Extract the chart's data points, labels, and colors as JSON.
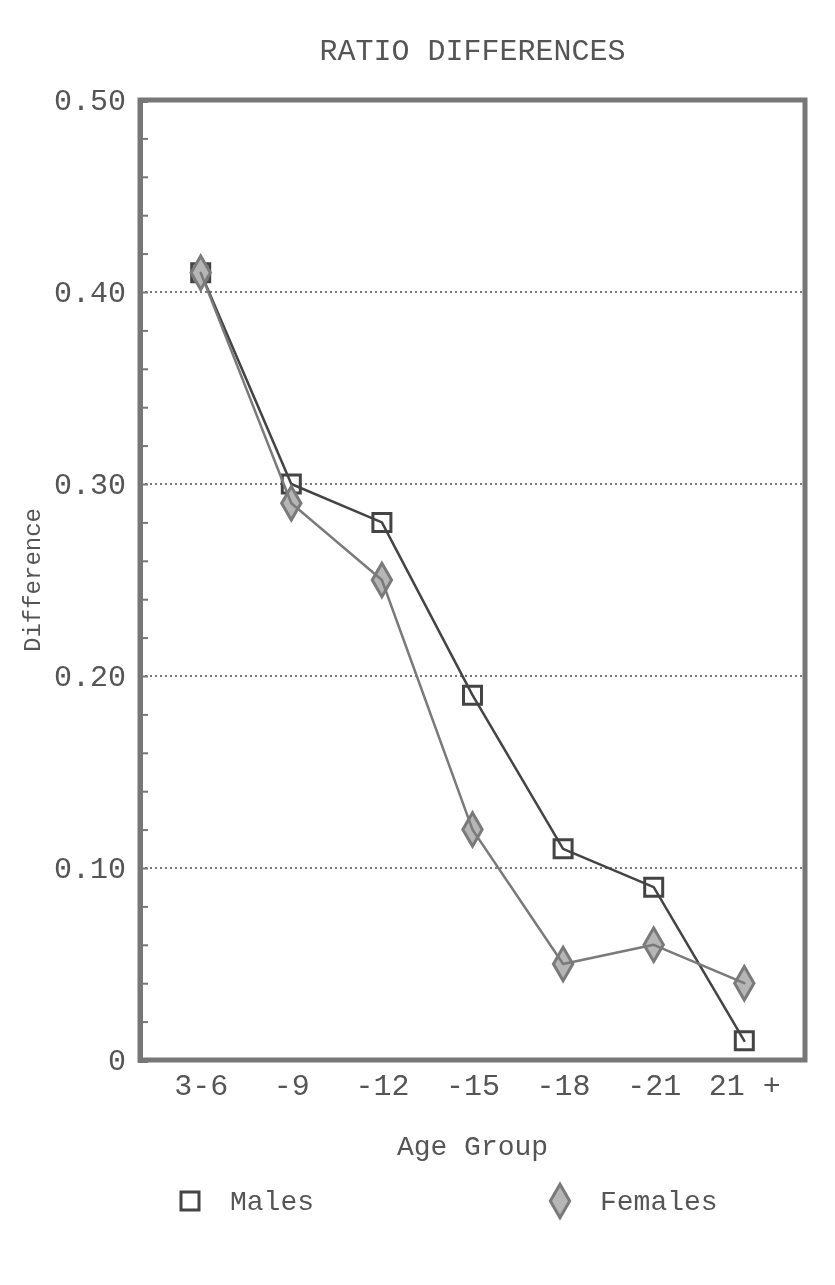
{
  "chart_data": {
    "type": "line",
    "title": "RATIO DIFFERENCES",
    "xlabel": "Age Group",
    "ylabel": "Difference",
    "categories": [
      "3-6",
      "-9",
      "-12",
      "-15",
      "-18",
      "-21",
      "21 +"
    ],
    "series": [
      {
        "name": "Males",
        "color": "#444444",
        "marker": "square",
        "values": [
          0.41,
          0.3,
          0.28,
          0.19,
          0.11,
          0.09,
          0.01
        ]
      },
      {
        "name": "Females",
        "color": "#7a7a7a",
        "marker": "diamond",
        "values": [
          0.41,
          0.29,
          0.25,
          0.12,
          0.05,
          0.06,
          0.04
        ]
      }
    ],
    "ylim": [
      0,
      0.5
    ],
    "yticks": [
      0,
      {
        "value": 0.02,
        "label": null
      },
      {
        "value": 0.04,
        "label": null
      },
      {
        "value": 0.06,
        "label": null
      },
      {
        "value": 0.08,
        "label": null
      },
      {
        "value": 0.1,
        "label": "0.10"
      },
      {
        "value": 0.12,
        "label": null
      },
      {
        "value": 0.14,
        "label": null
      },
      {
        "value": 0.16,
        "label": null
      },
      {
        "value": 0.18,
        "label": null
      },
      {
        "value": 0.2,
        "label": "0.20"
      },
      {
        "value": 0.22,
        "label": null
      },
      {
        "value": 0.24,
        "label": null
      },
      {
        "value": 0.26,
        "label": null
      },
      {
        "value": 0.28,
        "label": null
      },
      {
        "value": 0.3,
        "label": "0.30"
      },
      {
        "value": 0.32,
        "label": null
      },
      {
        "value": 0.34,
        "label": null
      },
      {
        "value": 0.36,
        "label": null
      },
      {
        "value": 0.38,
        "label": null
      },
      {
        "value": 0.4,
        "label": "0.40"
      },
      {
        "value": 0.42,
        "label": null
      },
      {
        "value": 0.44,
        "label": null
      },
      {
        "value": 0.46,
        "label": null
      },
      {
        "value": 0.48,
        "label": null
      },
      {
        "value": 0.5,
        "label": "0.50"
      }
    ],
    "grid": "y",
    "legend": "bottom"
  }
}
